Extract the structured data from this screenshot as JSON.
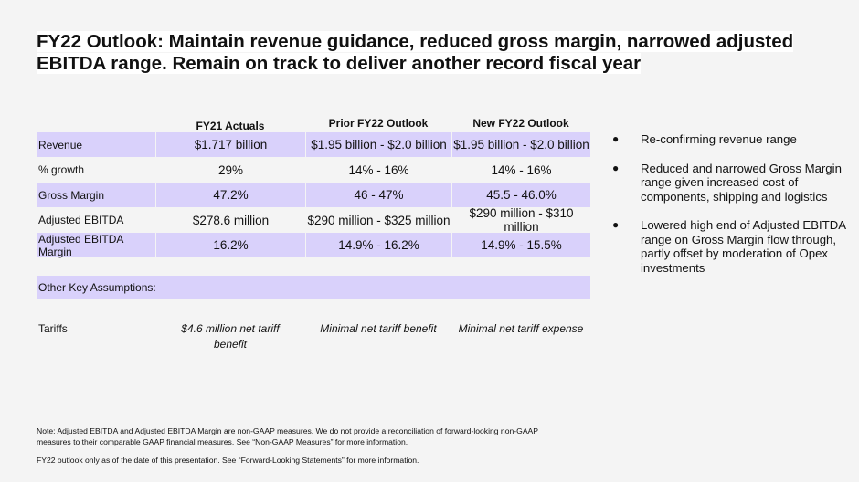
{
  "title": {
    "line1": "FY22 Outlook: Maintain revenue guidance, reduced gross margin, narrowed adjusted",
    "line2": "EBITDA range.  Remain on track to deliver another record fiscal year"
  },
  "table": {
    "headers": [
      "",
      "FY21 Actuals",
      "Prior FY22 Outlook",
      "New FY22 Outlook"
    ],
    "rows": [
      {
        "label": "Revenue",
        "fy21": "$1.717 billion",
        "prior": "$1.95 billion - $2.0 billion",
        "new": "$1.95 billion - $2.0 billion",
        "shaded": true
      },
      {
        "label": "% growth",
        "fy21": "29%",
        "prior": "14% - 16%",
        "new": "14% - 16%",
        "shaded": false
      },
      {
        "label": "Gross Margin",
        "fy21": "47.2%",
        "prior": "46 - 47%",
        "new": "45.5 - 46.0%",
        "shaded": true
      },
      {
        "label": "Adjusted EBITDA",
        "fy21": "$278.6 million",
        "prior": "$290 million - $325 million",
        "new": "$290 million - $310 million",
        "shaded": false
      },
      {
        "label": "Adjusted EBITDA Margin",
        "fy21": "16.2%",
        "prior": "14.9% - 16.2%",
        "new": "14.9% - 15.5%",
        "shaded": true
      }
    ],
    "assumptions_label": "Other Key Assumptions:",
    "tariffs": {
      "label": "Tariffs",
      "fy21": "$4.6 million net tariff benefit",
      "prior": "Minimal net tariff benefit",
      "new": "Minimal net tariff expense"
    }
  },
  "bullets": [
    "Re-confirming revenue range",
    "Reduced and narrowed Gross Margin range given increased cost of components, shipping and logistics",
    "Lowered high end of Adjusted EBITDA range on Gross Margin flow through, partly offset by moderation of Opex investments"
  ],
  "bullet_symbol": "●",
  "notes": {
    "note1": "Note: Adjusted EBITDA and Adjusted EBITDA Margin are non-GAAP measures.  We do not provide a reconciliation of forward-looking non-GAAP measures to their comparable GAAP financial measures. See “Non-GAAP Measures” for more information.",
    "note2": "FY22 outlook only as of the date of this presentation. See “Forward-Looking Statements” for more information."
  },
  "colors": {
    "row_shade": "#d9d1fb",
    "background": "#f4f4f4"
  }
}
